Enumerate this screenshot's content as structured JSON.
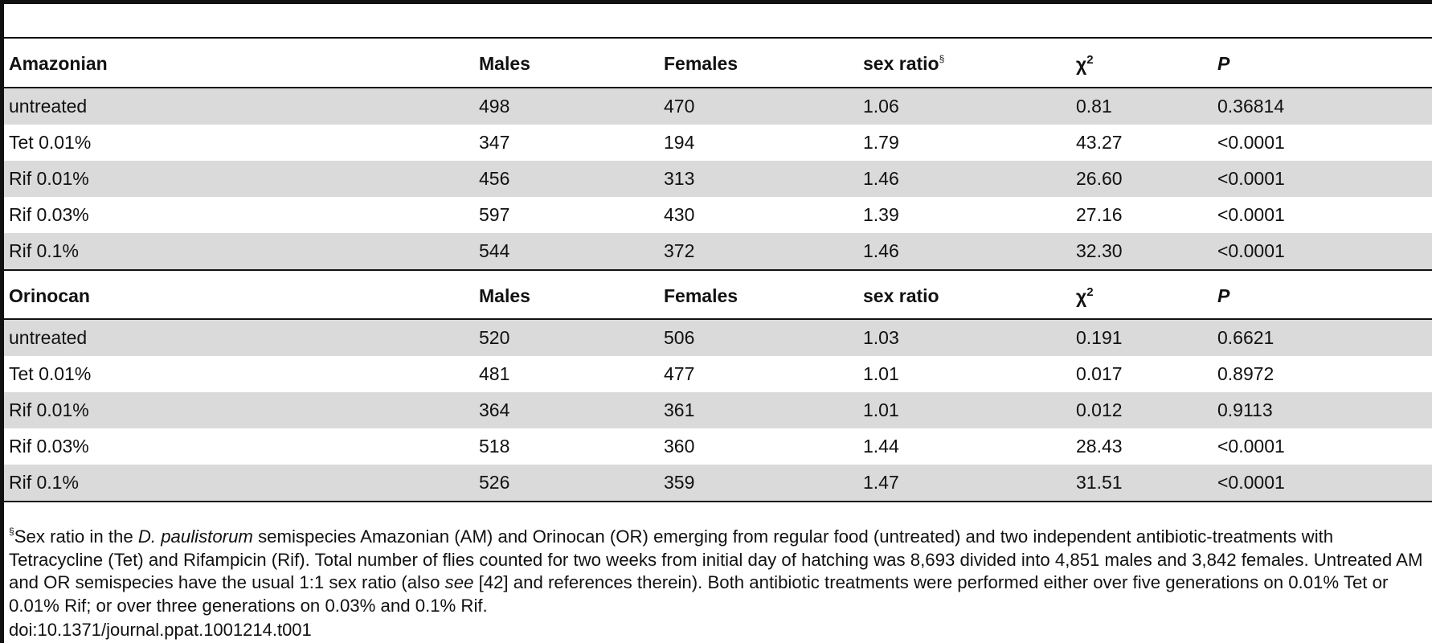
{
  "tables": [
    {
      "title": "Amazonian",
      "headers": {
        "males": "Males",
        "females": "Females",
        "sex_ratio": "sex ratio",
        "sex_ratio_mark": "§",
        "chi": "χ",
        "chi_power": "2",
        "p": "P"
      },
      "rows": [
        {
          "label": "untreated",
          "males": "498",
          "females": "470",
          "ratio": "1.06",
          "chi2": "0.81",
          "p": "0.36814"
        },
        {
          "label": "Tet 0.01%",
          "males": "347",
          "females": "194",
          "ratio": "1.79",
          "chi2": "43.27",
          "p": "<0.0001"
        },
        {
          "label": "Rif 0.01%",
          "males": "456",
          "females": "313",
          "ratio": "1.46",
          "chi2": "26.60",
          "p": "<0.0001"
        },
        {
          "label": "Rif 0.03%",
          "males": "597",
          "females": "430",
          "ratio": "1.39",
          "chi2": "27.16",
          "p": "<0.0001"
        },
        {
          "label": "Rif 0.1%",
          "males": "544",
          "females": "372",
          "ratio": "1.46",
          "chi2": "32.30",
          "p": "<0.0001"
        }
      ]
    },
    {
      "title": "Orinocan",
      "headers": {
        "males": "Males",
        "females": "Females",
        "sex_ratio": "sex ratio",
        "chi": "χ",
        "chi_power": "2",
        "p": "P"
      },
      "rows": [
        {
          "label": "untreated",
          "males": "520",
          "females": "506",
          "ratio": "1.03",
          "chi2": "0.191",
          "p": "0.6621"
        },
        {
          "label": "Tet 0.01%",
          "males": "481",
          "females": "477",
          "ratio": "1.01",
          "chi2": "0.017",
          "p": "0.8972"
        },
        {
          "label": "Rif 0.01%",
          "males": "364",
          "females": "361",
          "ratio": "1.01",
          "chi2": "0.012",
          "p": "0.9113"
        },
        {
          "label": "Rif 0.03%",
          "males": "518",
          "females": "360",
          "ratio": "1.44",
          "chi2": "28.43",
          "p": "<0.0001"
        },
        {
          "label": "Rif 0.1%",
          "males": "526",
          "females": "359",
          "ratio": "1.47",
          "chi2": "31.51",
          "p": "<0.0001"
        }
      ]
    }
  ],
  "footnote": {
    "mark": "§",
    "text_1": "Sex ratio in the ",
    "species": "D. paulistorum",
    "text_2": " semispecies Amazonian (AM) and Orinocan (OR) emerging from regular food (untreated) and two independent antibiotic-treatments with Tetracycline (Tet) and Rifampicin (Rif). Total number of flies counted for two weeks from initial day of hatching was 8,693 divided into 4,851 males and 3,842 females. Untreated AM and OR semispecies have the usual 1:1 sex ratio (also ",
    "see": "see",
    "text_3": " [42] and references therein). Both antibiotic treatments were performed either over five generations on 0.01% Tet or 0.01% Rif; or over three generations on 0.03% and 0.1% Rif."
  },
  "doi": "doi:10.1371/journal.ppat.1001214.t001"
}
